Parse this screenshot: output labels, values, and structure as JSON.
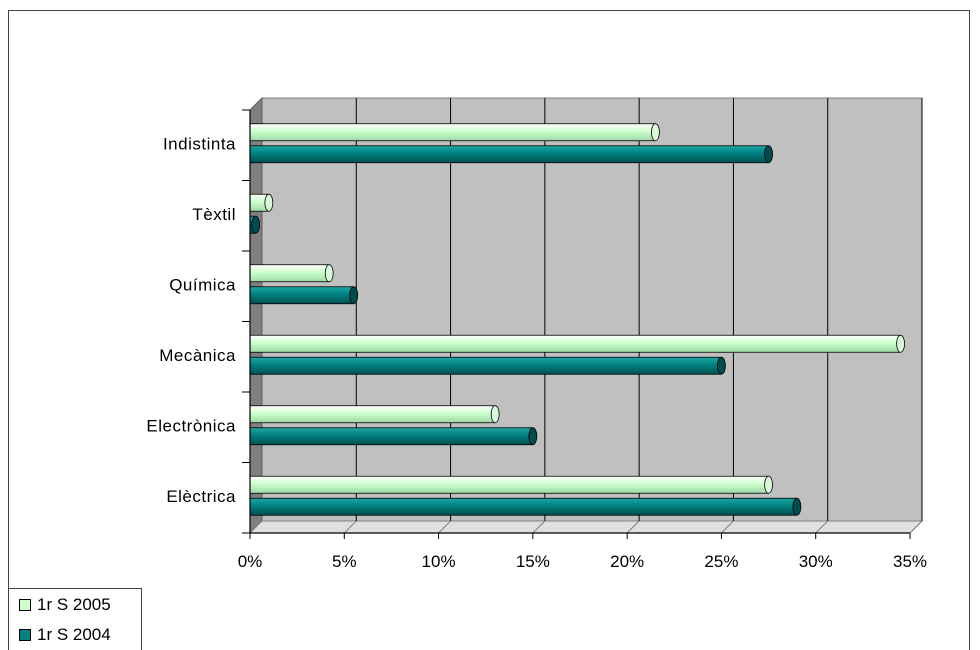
{
  "chart_data": {
    "type": "bar",
    "orientation": "horizontal",
    "categories": [
      "Elèctrica",
      "Electrònica",
      "Mecànica",
      "Química",
      "Tèxtil",
      "Indistinta"
    ],
    "series": [
      {
        "name": "1r S 2005",
        "color": "#ccffcc",
        "values": [
          27.5,
          13,
          34.5,
          4.2,
          1.0,
          21.5
        ]
      },
      {
        "name": "1r S 2004",
        "color": "#008080",
        "values": [
          29,
          15,
          25,
          5.5,
          0.3,
          27.5
        ]
      }
    ],
    "xlim": [
      0,
      35
    ],
    "xticks": [
      "0%",
      "5%",
      "10%",
      "15%",
      "20%",
      "25%",
      "30%",
      "35%"
    ],
    "grid": true,
    "legend_position": "bottom-left"
  }
}
